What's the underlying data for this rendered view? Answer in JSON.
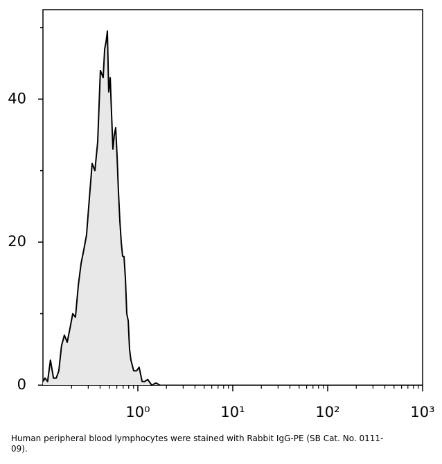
{
  "chart_data": {
    "type": "area",
    "caption": "Human peripheral blood lymphocytes were stained with Rabbit IgG-PE (SB Cat. No. 0111-09).",
    "log_x": true,
    "line_color": "#000000",
    "fill_color": "#e8e8e8",
    "x": [
      0.1,
      0.105,
      0.112,
      0.12,
      0.129,
      0.138,
      0.147,
      0.157,
      0.168,
      0.18,
      0.193,
      0.206,
      0.22,
      0.236,
      0.252,
      0.27,
      0.288,
      0.308,
      0.33,
      0.353,
      0.377,
      0.403,
      0.431,
      0.447,
      0.462,
      0.477,
      0.493,
      0.511,
      0.528,
      0.546,
      0.565,
      0.584,
      0.604,
      0.625,
      0.646,
      0.668,
      0.691,
      0.714,
      0.739,
      0.764,
      0.791,
      0.817,
      0.845,
      0.904,
      0.967,
      1.03,
      1.11,
      1.18,
      1.27,
      1.4,
      1.55,
      1.71
    ],
    "values": [
      0.5,
      1,
      0.5,
      3.5,
      1,
      1,
      2,
      5.5,
      7,
      6,
      8,
      10,
      9.5,
      14,
      17,
      19,
      21,
      26,
      31,
      30,
      34,
      44,
      43,
      47,
      48,
      49.5,
      41,
      43,
      38,
      33,
      35,
      36,
      32,
      27,
      23,
      20,
      18,
      18,
      15,
      10,
      9,
      5,
      3.5,
      2,
      2,
      2.5,
      0.5,
      0.5,
      0.8,
      0,
      0.3,
      0
    ],
    "xlim": [
      0.1,
      1000
    ],
    "xticks": [
      {
        "value": 1,
        "label": "10⁰"
      },
      {
        "value": 10,
        "label": "10¹"
      },
      {
        "value": 100,
        "label": "10²"
      },
      {
        "value": 1000,
        "label": "10³"
      }
    ],
    "xminor_ticks": [
      0.2,
      0.3,
      0.4,
      0.5,
      0.6,
      0.7,
      0.8,
      0.9,
      2,
      3,
      4,
      5,
      6,
      7,
      8,
      9,
      20,
      30,
      40,
      50,
      60,
      70,
      80,
      90,
      200,
      300,
      400,
      500,
      600,
      700,
      800,
      900
    ],
    "ylim": [
      0,
      52.5
    ],
    "yticks": [
      0,
      20,
      40
    ],
    "yminor_ticks": [
      10,
      30,
      50
    ]
  }
}
